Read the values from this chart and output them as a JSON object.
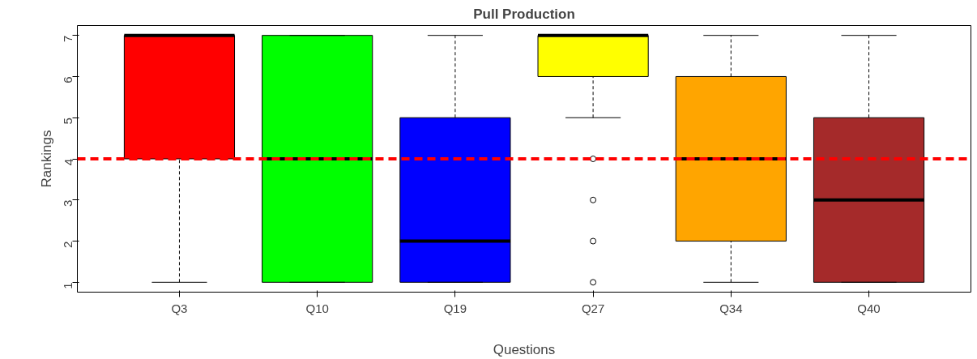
{
  "chart_data": {
    "type": "box",
    "title": "Pull Production",
    "xlabel": "Questions",
    "ylabel": "Rankings",
    "categories": [
      "Q3",
      "Q10",
      "Q19",
      "Q27",
      "Q34",
      "Q40"
    ],
    "colors": [
      "#ff0000",
      "#00ff00",
      "#0000ff",
      "#ffff00",
      "#ffa500",
      "#a52a2a"
    ],
    "boxes": [
      {
        "low": 1,
        "q1": 4,
        "median": 7,
        "q3": 7,
        "high": 7
      },
      {
        "low": 1,
        "q1": 1,
        "median": 4,
        "q3": 7,
        "high": 7
      },
      {
        "low": 1,
        "q1": 1,
        "median": 2,
        "q3": 5,
        "high": 7
      },
      {
        "low": 5,
        "q1": 6,
        "median": 7,
        "q3": 7,
        "high": 7,
        "outliers": [
          4,
          3,
          2,
          1
        ]
      },
      {
        "low": 1,
        "q1": 2,
        "median": 4,
        "q3": 6,
        "high": 7
      },
      {
        "low": 1,
        "q1": 1,
        "median": 3,
        "q3": 5,
        "high": 7
      }
    ],
    "ylim": [
      0.76,
      7.24
    ],
    "yticks": [
      1,
      2,
      3,
      4,
      5,
      6,
      7
    ],
    "ref_lines": [
      {
        "axis": "y",
        "value": 4,
        "label": null,
        "color": "#ff0000",
        "line_style": "dashed"
      }
    ],
    "grid": false
  }
}
